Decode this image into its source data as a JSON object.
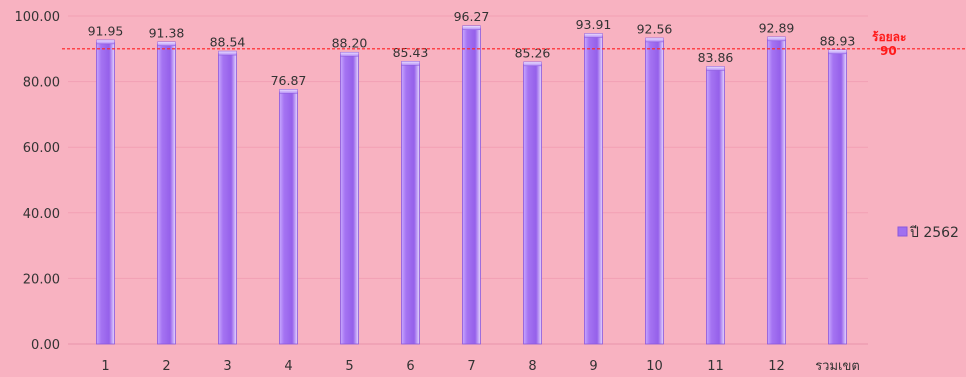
{
  "chart_data": {
    "type": "bar",
    "categories": [
      "1",
      "2",
      "3",
      "4",
      "5",
      "6",
      "7",
      "8",
      "9",
      "10",
      "11",
      "12",
      "รวมเขต"
    ],
    "series": [
      {
        "name": "ปี 2562",
        "values": [
          91.95,
          91.38,
          88.54,
          76.87,
          88.2,
          85.43,
          96.27,
          85.26,
          93.91,
          92.56,
          83.86,
          92.89,
          88.93
        ],
        "labels": [
          "91.95",
          "91.38",
          "88.54",
          "76.87",
          "88.20",
          "85.43",
          "96.27",
          "85.26",
          "93.91",
          "92.56",
          "83.86",
          "92.89",
          "88.93"
        ]
      }
    ],
    "ylim": [
      0,
      100
    ],
    "yticks": [
      0,
      20,
      40,
      60,
      80,
      100
    ],
    "ytick_labels": [
      "0.00",
      "20.00",
      "40.00",
      "60.00",
      "80.00",
      "100.00"
    ],
    "reference_line": {
      "value": 90,
      "label_line1": "ร้อยละ",
      "label_line2": "90",
      "color": "#ff2020"
    },
    "grid": true,
    "legend_position": "right",
    "colors": {
      "background": "#f8b2c1",
      "bar": "#a070f0",
      "bar_edge": "#8a58dc",
      "gridline": "#f2a0b4"
    }
  }
}
